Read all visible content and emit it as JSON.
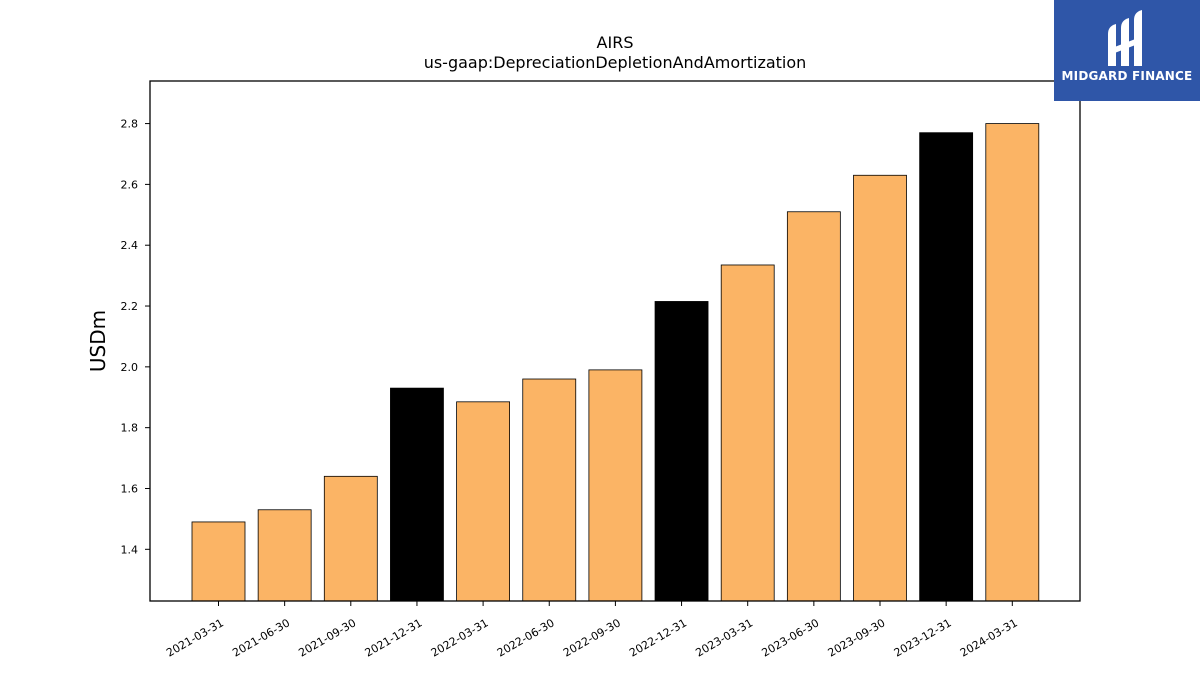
{
  "chart_data": {
    "type": "bar",
    "title": "AIRS",
    "subtitle": "us-gaap:DepreciationDepletionAndAmortization",
    "xlabel": "",
    "ylabel": "USDm",
    "ylim": [
      1.23,
      2.94
    ],
    "yticks": [
      "1.4",
      "1.6",
      "1.8",
      "2.0",
      "2.2",
      "2.4",
      "2.6",
      "2.8"
    ],
    "grid": false,
    "categories": [
      "2021-03-31",
      "2021-06-30",
      "2021-09-30",
      "2021-12-31",
      "2022-03-31",
      "2022-06-30",
      "2022-09-30",
      "2022-12-31",
      "2023-03-31",
      "2023-06-30",
      "2023-09-30",
      "2023-12-31",
      "2024-03-31"
    ],
    "values": [
      1.49,
      1.53,
      1.64,
      1.93,
      1.885,
      1.96,
      1.99,
      2.215,
      2.335,
      2.51,
      2.63,
      2.77,
      2.8
    ],
    "bar_colors": [
      "#fbb465",
      "#fbb465",
      "#fbb465",
      "#000000",
      "#fbb465",
      "#fbb465",
      "#fbb465",
      "#000000",
      "#fbb465",
      "#fbb465",
      "#fbb465",
      "#000000",
      "#fbb465"
    ]
  },
  "logo": {
    "text": "MIDGARD FINANCE",
    "background": "#2f56a8",
    "color": "#ffffff"
  }
}
